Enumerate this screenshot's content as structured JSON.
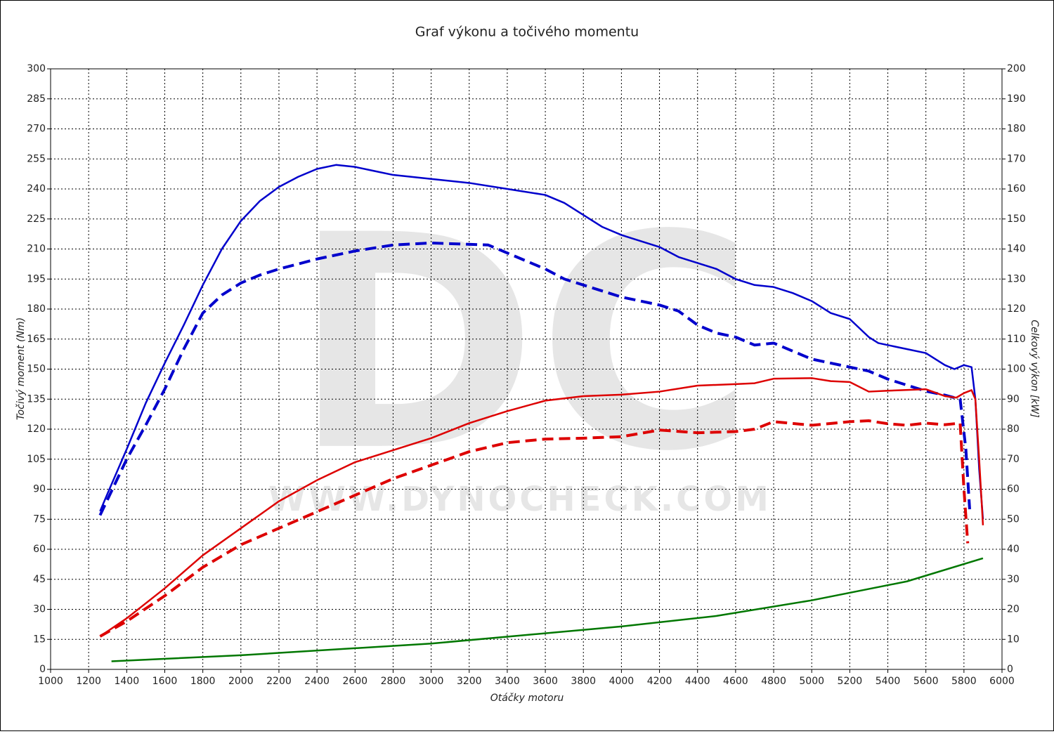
{
  "chart_data": {
    "type": "line",
    "title": "Graf výkonu a točivého momentu",
    "xlabel": "Otáčky motoru",
    "ylabel": "Točivý moment (Nm)",
    "y2label": "Celkový výkon [kW]",
    "watermark": "DC",
    "watermark_url": "WWW.DYNOCHECK.COM",
    "xlim": [
      1000,
      6000
    ],
    "ylim": [
      0,
      300
    ],
    "y2lim": [
      0,
      200
    ],
    "grid": true,
    "xticks": [
      1000,
      1200,
      1400,
      1600,
      1800,
      2000,
      2200,
      2400,
      2600,
      2800,
      3000,
      3200,
      3400,
      3600,
      3800,
      4000,
      4200,
      4400,
      4600,
      4800,
      5000,
      5200,
      5400,
      5600,
      5800,
      6000
    ],
    "yticks": [
      0,
      15,
      30,
      45,
      60,
      75,
      90,
      105,
      120,
      135,
      150,
      165,
      180,
      195,
      210,
      225,
      240,
      255,
      270,
      285,
      300
    ],
    "y2ticks": [
      0,
      10,
      20,
      30,
      40,
      50,
      60,
      70,
      80,
      90,
      100,
      110,
      120,
      130,
      140,
      150,
      160,
      170,
      180,
      190,
      200
    ],
    "series": [
      {
        "color": "#0000cc",
        "dash": false,
        "axis": "y",
        "x": [
          1260,
          1300,
          1400,
          1500,
          1600,
          1700,
          1800,
          1900,
          2000,
          2100,
          2200,
          2300,
          2400,
          2500,
          2600,
          2700,
          2800,
          3000,
          3200,
          3400,
          3600,
          3700,
          3800,
          3900,
          4000,
          4200,
          4300,
          4400,
          4500,
          4600,
          4700,
          4800,
          4900,
          5000,
          5100,
          5200,
          5300,
          5350,
          5400,
          5500,
          5600,
          5700,
          5750,
          5800,
          5840,
          5860,
          5880,
          5900
        ],
        "values": [
          79,
          88,
          110,
          133,
          153,
          172,
          192,
          210,
          224,
          234,
          241,
          246,
          250,
          252,
          251,
          249,
          247,
          245,
          243,
          240,
          237,
          233,
          227,
          221,
          217,
          211,
          206,
          203,
          200,
          195,
          192,
          191,
          188,
          184,
          178,
          175,
          166,
          163,
          162,
          160,
          158,
          152,
          150,
          152,
          151,
          135,
          100,
          75
        ]
      },
      {
        "color": "#0000cc",
        "dash": true,
        "axis": "y",
        "x": [
          1260,
          1300,
          1400,
          1500,
          1600,
          1700,
          1800,
          1900,
          2000,
          2100,
          2200,
          2400,
          2600,
          2800,
          3000,
          3300,
          3400,
          3600,
          3700,
          3800,
          4000,
          4200,
          4300,
          4400,
          4500,
          4600,
          4700,
          4800,
          4900,
          5000,
          5200,
          5300,
          5400,
          5500,
          5600,
          5700,
          5780,
          5810,
          5830
        ],
        "values": [
          77,
          85,
          105,
          122,
          140,
          160,
          178,
          187,
          193,
          197,
          200,
          205,
          209,
          212,
          213,
          212,
          208,
          200,
          195,
          192,
          186,
          182,
          179,
          172,
          168,
          166,
          162,
          163,
          159,
          155,
          151,
          149,
          145,
          142,
          139,
          137,
          135,
          110,
          80
        ]
      },
      {
        "color": "#dd0000",
        "dash": false,
        "axis": "y2",
        "x": [
          1260,
          1400,
          1600,
          1800,
          2000,
          2200,
          2400,
          2600,
          2800,
          3000,
          3200,
          3400,
          3600,
          3800,
          4000,
          4200,
          4400,
          4600,
          4700,
          4800,
          5000,
          5100,
          5200,
          5300,
          5400,
          5600,
          5700,
          5760,
          5800,
          5840,
          5860,
          5880,
          5900
        ],
        "values": [
          11,
          17,
          27,
          38,
          47,
          56,
          63,
          69,
          73,
          77,
          82,
          86,
          89.5,
          91,
          91.5,
          92.5,
          94.5,
          95,
          95.3,
          96.8,
          97,
          96,
          95.7,
          92.5,
          92.8,
          93.3,
          91,
          90.5,
          92,
          93,
          90,
          70,
          48
        ]
      },
      {
        "color": "#dd0000",
        "dash": true,
        "axis": "y2",
        "x": [
          1260,
          1400,
          1600,
          1800,
          2000,
          2200,
          2400,
          2600,
          2800,
          3000,
          3200,
          3400,
          3600,
          3800,
          4000,
          4200,
          4400,
          4600,
          4700,
          4800,
          5000,
          5200,
          5300,
          5400,
          5500,
          5600,
          5700,
          5780,
          5800,
          5820
        ],
        "values": [
          11,
          16,
          24.5,
          34,
          41.5,
          47,
          52.5,
          58,
          63.5,
          68,
          72.5,
          75.5,
          76.7,
          77,
          77.5,
          79.7,
          78.8,
          79.2,
          80,
          82.5,
          81.3,
          82.5,
          82.8,
          81.8,
          81.3,
          82,
          81.5,
          82,
          60,
          42
        ]
      },
      {
        "color": "#007700",
        "dash": false,
        "axis": "y2",
        "x": [
          1320,
          2000,
          3000,
          4000,
          4500,
          5000,
          5500,
          5900
        ],
        "values": [
          2.7,
          4.7,
          8.6,
          14.3,
          17.8,
          23,
          29.3,
          37
        ]
      }
    ]
  }
}
